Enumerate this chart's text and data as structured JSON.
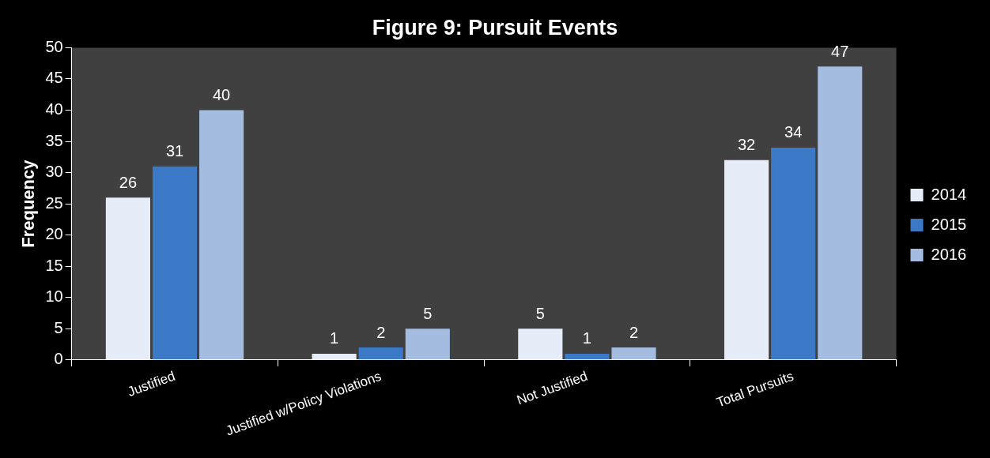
{
  "chart_data": {
    "type": "bar",
    "title": "Figure 9: Pursuit Events",
    "ylabel": "Frequency",
    "categories": [
      "Justified",
      "Justified w/Policy Violations",
      "Not Justified",
      "Total Pursuits"
    ],
    "series": [
      {
        "name": "2014",
        "color": "#e6edf8",
        "values": [
          26,
          1,
          5,
          32
        ]
      },
      {
        "name": "2015",
        "color": "#3b78c6",
        "values": [
          31,
          2,
          1,
          34
        ]
      },
      {
        "name": "2016",
        "color": "#a3bce0",
        "values": [
          40,
          5,
          2,
          47
        ]
      }
    ],
    "ylim": [
      0,
      50
    ],
    "yticks": [
      0,
      5,
      10,
      15,
      20,
      25,
      30,
      35,
      40,
      45,
      50
    ],
    "grid": false,
    "legend": "right",
    "data_labels": true
  }
}
